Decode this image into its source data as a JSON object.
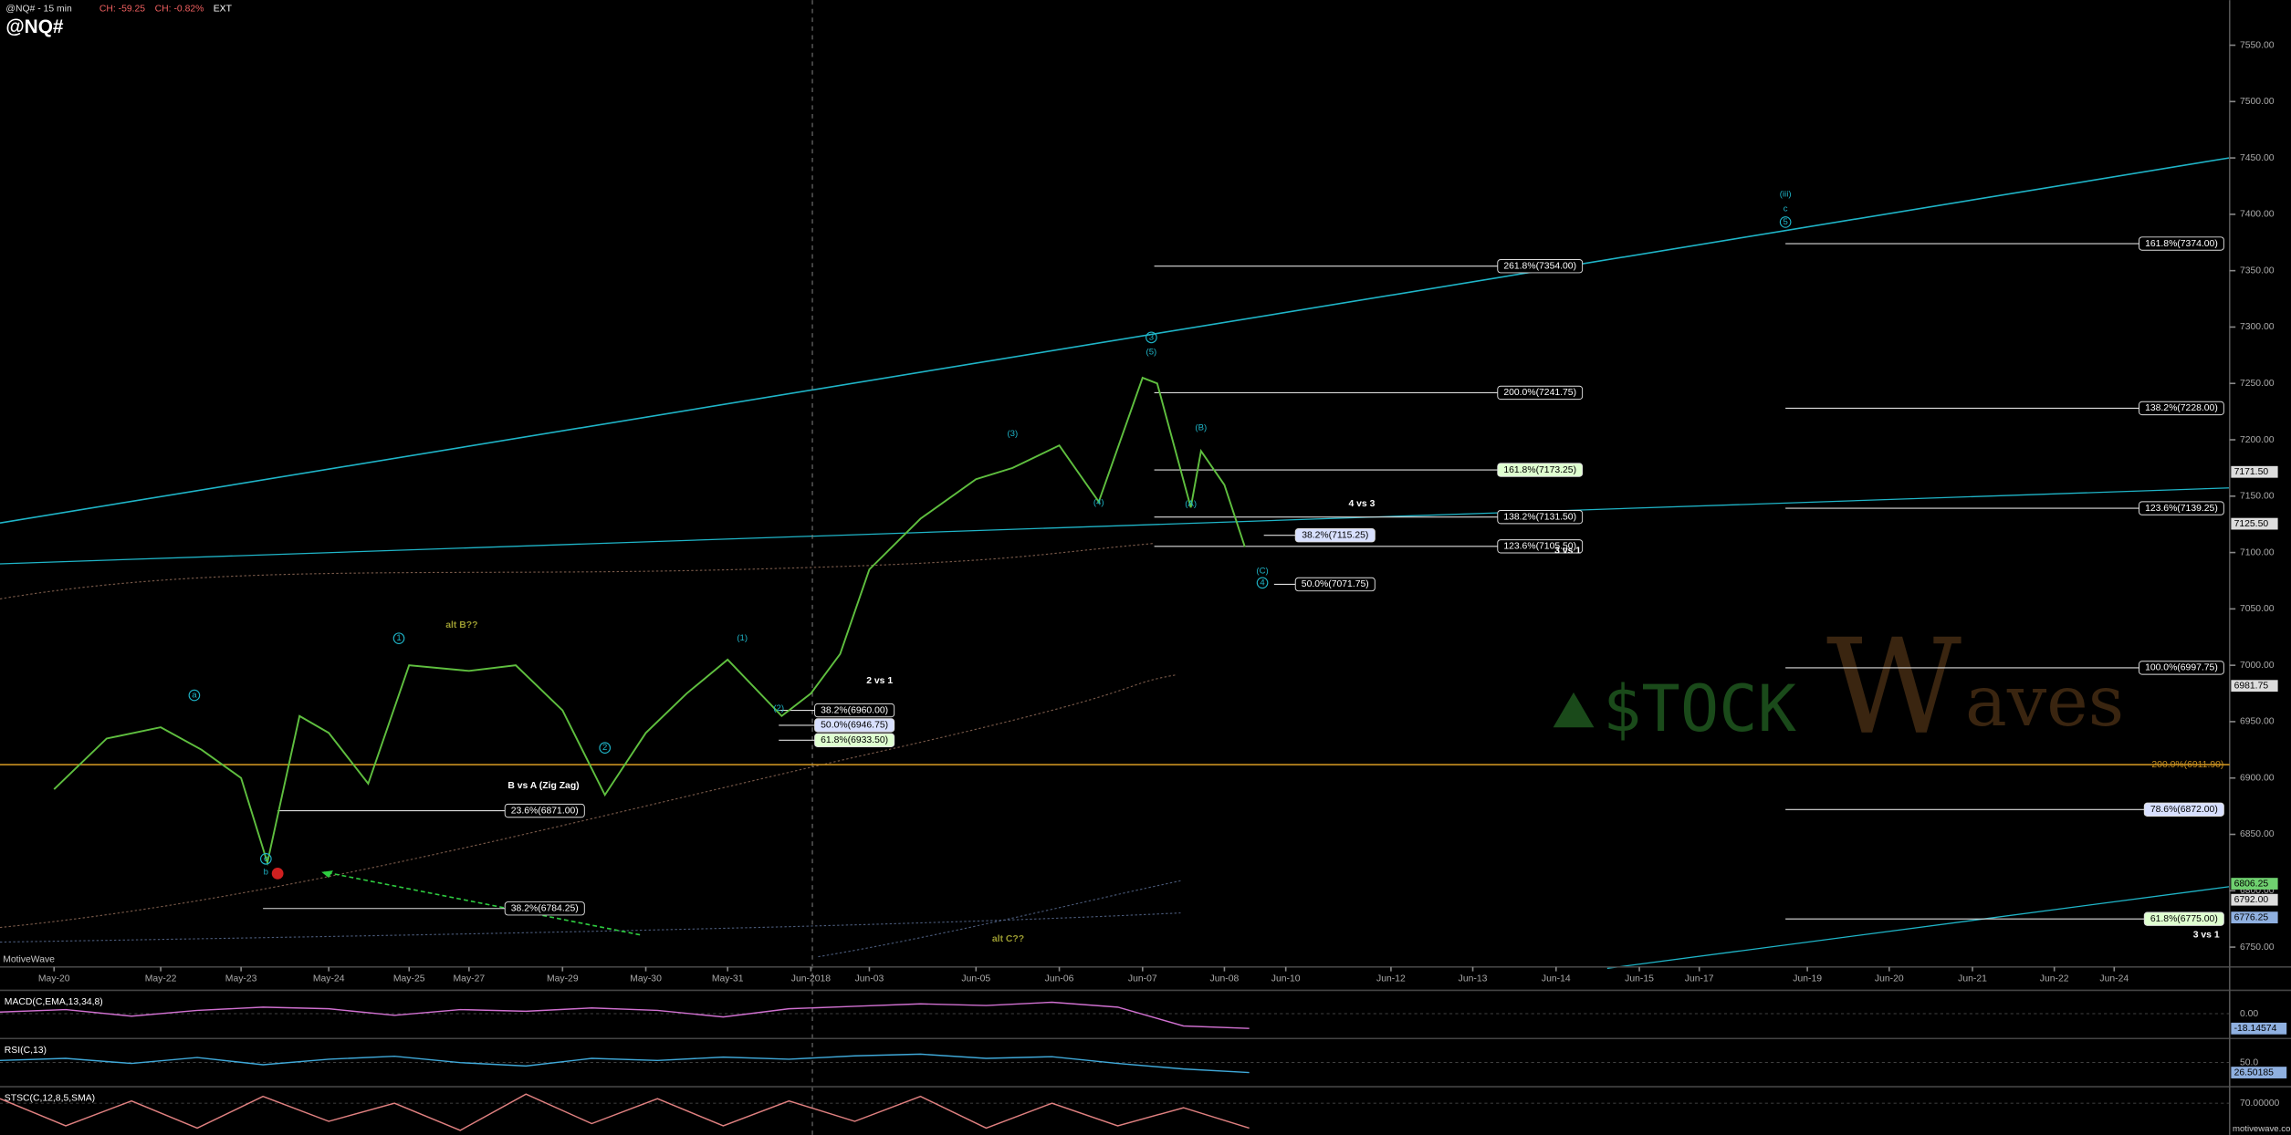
{
  "chart_data": {
    "type": "line",
    "title": "@NQ#",
    "subtitle": "@NQ# - 15 min",
    "header": [
      "CH: -59.25",
      "CH: -0.82%",
      "EXT"
    ],
    "categories": [
      "May-20",
      null,
      "May-22",
      null,
      "May-23",
      null,
      null,
      "May-24",
      null,
      "May-25",
      "May-27",
      null,
      "May-29",
      null,
      "May-30",
      null,
      "May-31",
      null,
      "Jun-2018",
      null,
      "Jun-03",
      null,
      "Jun-05",
      null,
      "Jun-06",
      null,
      "Jun-07",
      null,
      null,
      null,
      "Jun-08",
      null,
      "Jun-10",
      "Jun-12",
      "Jun-13",
      "Jun-14",
      "Jun-15",
      "Jun-17",
      "Jun-19",
      "Jun-20",
      "Jun-21",
      "Jun-22",
      "Jun-24"
    ],
    "series": [
      {
        "color": "#5fbf3f",
        "values": [
          6890,
          6935,
          6945,
          6925,
          6900,
          6825,
          6955,
          6940,
          6895,
          7000,
          6995,
          7000,
          6960,
          6885,
          6940,
          6975,
          7005,
          6955,
          6975,
          7010,
          7085,
          7130,
          7165,
          7175,
          7195,
          7145,
          7255,
          7250,
          7140,
          7190,
          7160,
          7105,
          null,
          null,
          null,
          null,
          null,
          null,
          null,
          null,
          null,
          null,
          null
        ]
      }
    ],
    "ylim": [
      6735,
      7590
    ],
    "yticks": [
      {
        "value": 6750,
        "label": "6750.00"
      },
      {
        "value": 6800,
        "label": "6800.00"
      },
      {
        "value": 6850,
        "label": "6850.00"
      },
      {
        "value": 6900,
        "label": "6900.00"
      },
      {
        "value": 6950,
        "label": "6950.00"
      },
      {
        "value": 7000,
        "label": "7000.00"
      },
      {
        "value": 7050,
        "label": "7050.00"
      },
      {
        "value": 7100,
        "label": "7100.00"
      },
      {
        "value": 7150,
        "label": "7150.00"
      },
      {
        "value": 7200,
        "label": "7200.00"
      },
      {
        "value": 7250,
        "label": "7250.00"
      },
      {
        "value": 7300,
        "label": "7300.00"
      },
      {
        "value": 7350,
        "label": "7350.00"
      },
      {
        "value": 7400,
        "label": "7400.00"
      },
      {
        "value": 7450,
        "label": "7450.00"
      },
      {
        "value": 7500,
        "label": "7500.00"
      },
      {
        "value": 7550,
        "label": "7550.00"
      }
    ],
    "levels": [
      {
        "value": 7354,
        "label": "261.8%(7354.00)"
      },
      {
        "value": 7241.75,
        "label": "200.0%(7241.75)"
      },
      {
        "value": 7173.25,
        "label": "161.8%(7173.25)"
      },
      {
        "value": 7131.5,
        "label": "138.2%(7131.50)"
      },
      {
        "value": 7105.5,
        "label": "123.6%(7105.50)"
      },
      {
        "value": 7115.25,
        "label": "38.2%(7115.25)"
      },
      {
        "value": 7071.75,
        "label": "50.0%(7071.75)"
      },
      {
        "value": 6960,
        "label": "38.2%(6960.00)"
      },
      {
        "value": 6946.75,
        "label": "50.0%(6946.75)"
      },
      {
        "value": 6933.5,
        "label": "61.8%(6933.50)"
      },
      {
        "value": 6871,
        "label": "23.6%(6871.00)"
      },
      {
        "value": 6784.25,
        "label": "38.2%(6784.25)"
      },
      {
        "value": 7374,
        "label": "161.8%(7374.00)"
      },
      {
        "value": 7228,
        "label": "138.2%(7228.00)"
      },
      {
        "value": 7139.25,
        "label": "123.6%(7139.25)"
      },
      {
        "value": 6997.75,
        "label": "100.0%(6997.75)"
      },
      {
        "value": 6872,
        "label": "78.6%(6872.00)"
      },
      {
        "value": 6775,
        "label": "61.8%(6775.00)"
      },
      {
        "value": 6911.9,
        "label": "200.0%(6911.90)"
      }
    ],
    "price_tags": [
      {
        "value": 7171.5,
        "label": "7171.50"
      },
      {
        "value": 7125.5,
        "label": "7125.50"
      },
      {
        "value": 6981.75,
        "label": "6981.75"
      },
      {
        "value": 6806.25,
        "label": "6806.25"
      },
      {
        "value": 6792,
        "label": "6792.00"
      },
      {
        "value": 6776.25,
        "label": "6776.25"
      }
    ],
    "wave_labels": [
      "(iii)",
      "c",
      "5",
      "3",
      "(5)",
      "(3)",
      "(4)",
      "(B)",
      "(A)",
      "(C)",
      "4",
      "(1)",
      "(2)",
      "1",
      "2",
      "a",
      "c",
      "b"
    ],
    "annotations": [
      "alt B??",
      "alt C??",
      "4 vs 3",
      "3 vs 1",
      "2 vs 1",
      "B vs A (Zig Zag)",
      "3 vs 1"
    ],
    "watermark": [
      "$TOCK",
      "W",
      "aves"
    ],
    "brand": "MotiveWave",
    "footer": "motivewave.com",
    "indicators": [
      {
        "title": "MACD(C,EMA,13,34,8)",
        "color": "#d070d0",
        "ylim": [
          -25,
          25
        ],
        "yticks": [
          {
            "value": 0,
            "label": "0.00"
          }
        ],
        "tag": {
          "value": -18.14574,
          "label": "-18.14574"
        },
        "values": [
          2,
          5,
          -3,
          4,
          8,
          6,
          -2,
          5,
          3,
          7,
          4,
          -4,
          6,
          9,
          12,
          10,
          14,
          8,
          -15,
          -18
        ]
      },
      {
        "title": "RSI(C,13)",
        "color": "#3fa8d8",
        "ylim": [
          0,
          100
        ],
        "yticks": [
          {
            "value": 50,
            "label": "50.0"
          }
        ],
        "tag": {
          "value": 26.50185,
          "label": "26.50185"
        },
        "values": [
          55,
          60,
          48,
          62,
          45,
          58,
          65,
          50,
          42,
          60,
          55,
          63,
          58,
          66,
          70,
          60,
          64,
          48,
          35,
          26.5
        ]
      },
      {
        "title": "STSC(C,12,8,5,SMA)",
        "color": "#e08080",
        "ylim": [
          0,
          100
        ],
        "yticks": [
          {
            "value": 70,
            "label": "70.00000"
          }
        ],
        "tag": null,
        "values": [
          80,
          20,
          75,
          15,
          85,
          30,
          70,
          10,
          90,
          25,
          80,
          20,
          75,
          30,
          85,
          15,
          70,
          20,
          60,
          15
        ]
      }
    ]
  }
}
